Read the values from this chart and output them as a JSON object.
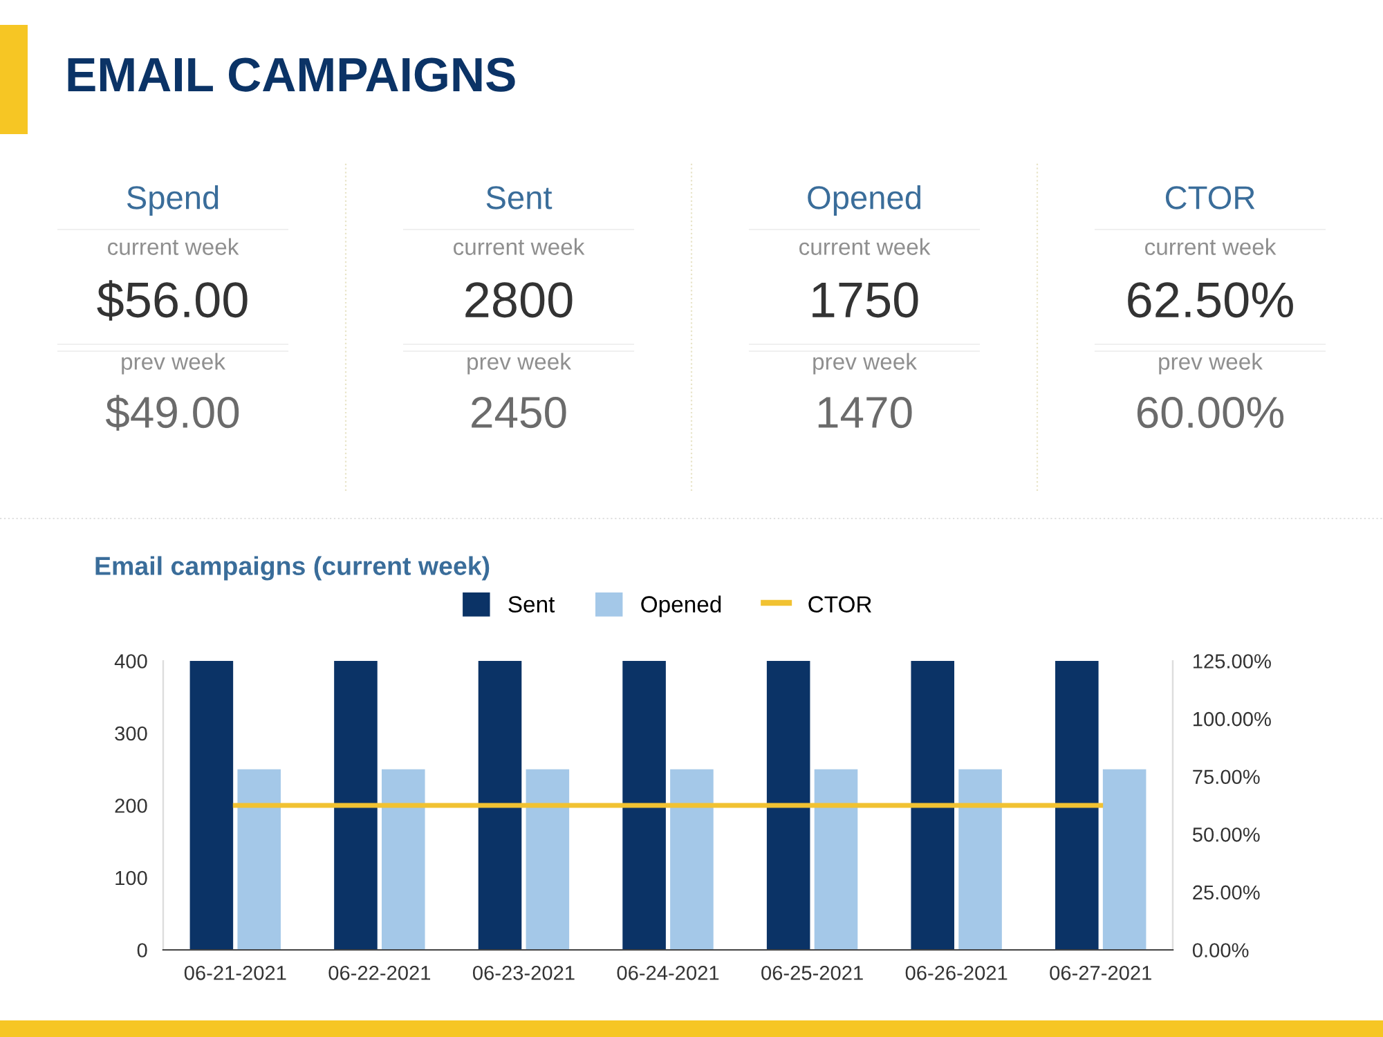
{
  "chart_data": [
    {
      "type": "other",
      "title": "EMAIL CAMPAIGNS",
      "categories": [
        "Spend",
        "Sent",
        "Opened",
        "CTOR"
      ],
      "series": [
        {
          "name": "current week",
          "values": [
            56,
            2800,
            1750,
            62.5
          ],
          "value_labels": [
            "$56.00",
            "2800",
            "1750",
            "62.50%"
          ]
        },
        {
          "name": "prev week",
          "values": [
            49,
            2450,
            1470,
            60
          ],
          "value_labels": [
            "$49.00",
            "2450",
            "1470",
            "60.00%"
          ]
        }
      ]
    },
    {
      "type": "bar",
      "title": "Email campaigns (current week)",
      "categories": [
        "06-21-2021",
        "06-22-2021",
        "06-23-2021",
        "06-24-2021",
        "06-25-2021",
        "06-26-2021",
        "06-27-2021"
      ],
      "series": [
        {
          "name": "Sent",
          "color": "#0b3366",
          "values": [
            400,
            400,
            400,
            400,
            400,
            400,
            400
          ]
        },
        {
          "name": "Opened",
          "color": "#a4c8e8",
          "values": [
            250,
            250,
            250,
            250,
            250,
            250,
            250
          ]
        },
        {
          "name": "CTOR",
          "type": "line",
          "axis": "y2",
          "color": "#f1c232",
          "values": [
            62.5,
            62.5,
            62.5,
            62.5,
            62.5,
            62.5,
            62.5
          ]
        }
      ],
      "ylim": [
        0,
        400
      ],
      "yticks": [
        0,
        100,
        200,
        300,
        400
      ],
      "y2lim": [
        0,
        125
      ],
      "y2ticks": [
        {
          "value": 0,
          "label": "0.00%"
        },
        {
          "value": 25,
          "label": "25.00%"
        },
        {
          "value": 50,
          "label": "50.00%"
        },
        {
          "value": 75,
          "label": "75.00%"
        },
        {
          "value": 100,
          "label": "100.00%"
        },
        {
          "value": 125,
          "label": "125.00%"
        }
      ],
      "legend": "top",
      "grid": false
    }
  ]
}
